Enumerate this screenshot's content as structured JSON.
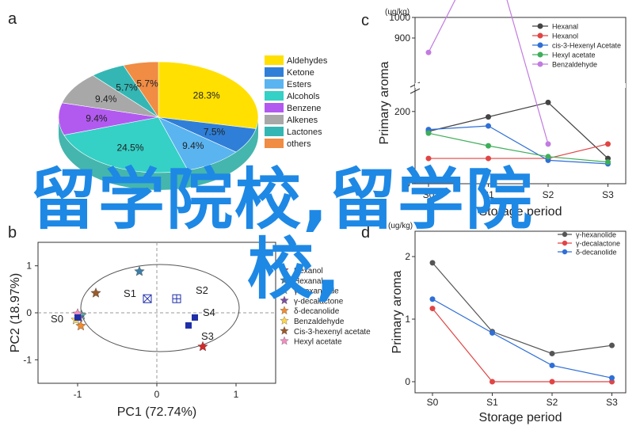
{
  "overlay": {
    "line1": "留学院校,留学院",
    "line2": "校,"
  },
  "colors": {
    "overlay": "#1e88e5"
  },
  "chart_data": [
    {
      "panel": "a",
      "type": "pie",
      "categories": [
        "Aldehydes",
        "Ketone",
        "Esters",
        "Alcohols",
        "Benzene",
        "Alkenes",
        "Lactones",
        "others"
      ],
      "values": [
        28.3,
        7.5,
        9.4,
        24.5,
        9.4,
        9.4,
        5.7,
        5.7
      ],
      "labels": [
        "28.3%",
        "7.5%",
        "9.4%",
        "24.5%",
        "9.4%",
        "9.4%",
        "5.7%",
        "5.7%"
      ],
      "colors": [
        "#ffe000",
        "#2f7fd8",
        "#5ab4f0",
        "#35d0c6",
        "#b25af0",
        "#a8a8a8",
        "#34b7b4",
        "#f08c44"
      ],
      "legend": "right"
    },
    {
      "panel": "b",
      "type": "scatter",
      "xlabel": "PC1 (72.74%)",
      "ylabel": "PC2 (18.97%)",
      "xticks": [
        -1,
        0,
        1
      ],
      "yticks": [
        1,
        0,
        -1
      ],
      "xlim": [
        -1.5,
        1.5
      ],
      "ylim": [
        -1.5,
        1.5
      ],
      "samples": [
        {
          "label": "S0",
          "x": -1.0,
          "y": -0.1,
          "marker": "square"
        },
        {
          "label": "S1",
          "x": -0.12,
          "y": 0.3,
          "marker": "cross-square"
        },
        {
          "label": "S2",
          "x": 0.25,
          "y": 0.3,
          "marker": "grid-square"
        },
        {
          "label": "S3",
          "x": 0.4,
          "y": -0.1,
          "marker": "square"
        },
        {
          "label": "S4",
          "x": 0.4,
          "y": -0.1,
          "marker": "square"
        }
      ],
      "series": [
        {
          "name": "Hexanol",
          "color": "#d62728",
          "x": 0.58,
          "y": -0.72
        },
        {
          "name": "Hexanal",
          "color": "#3c7ea8",
          "x": -0.22,
          "y": 0.88
        },
        {
          "name": "γ-hexanolide",
          "color": "#5aa8a8",
          "x": -0.95,
          "y": -0.05
        },
        {
          "name": "γ-decalactone",
          "color": "#7b4e9e",
          "x": -0.98,
          "y": -0.1
        },
        {
          "name": "δ-decanolide",
          "color": "#f08c30",
          "x": -0.96,
          "y": -0.28
        },
        {
          "name": "Benzaldehyde",
          "color": "#ffd54a",
          "x": -1.02,
          "y": -0.15
        },
        {
          "name": "Cis-3-hexenyl acetate",
          "color": "#9a5a2a",
          "x": -0.77,
          "y": 0.42
        },
        {
          "name": "Hexyl acetate",
          "color": "#f28cc0",
          "x": -1.0,
          "y": -0.02
        }
      ],
      "legend": "right"
    },
    {
      "panel": "c",
      "type": "line",
      "categories": [
        "S0",
        "S1",
        "S2",
        "S3"
      ],
      "xlabel": "Storage period",
      "ylabel": "Primary aroma",
      "unit": "(ug/kg)",
      "yticks": [
        "1000",
        "900",
        "200",
        "0"
      ],
      "series": [
        {
          "name": "Hexanal",
          "color": "#444444",
          "values": [
            145,
            185,
            225,
            70
          ]
        },
        {
          "name": "Hexanol",
          "color": "#e04545",
          "values": [
            70,
            70,
            70,
            110
          ]
        },
        {
          "name": "cis-3-Hexenyl Acetate",
          "color": "#2f6fd6",
          "values": [
            150,
            160,
            65,
            55
          ]
        },
        {
          "name": "Hexyl acetate",
          "color": "#3fae5a",
          "values": [
            140,
            105,
            75,
            60
          ]
        },
        {
          "name": "Benzaldehyde",
          "color": "#c27be0",
          "values": [
            830,
            690,
            110,
            null
          ]
        }
      ],
      "legend": "top-right"
    },
    {
      "panel": "d",
      "type": "line",
      "categories": [
        "S0",
        "S1",
        "S2",
        "S3"
      ],
      "xlabel": "Storage period",
      "ylabel": "Primary aroma",
      "unit": "(ug/kg)",
      "yticks": [
        0,
        1,
        2
      ],
      "ylim": [
        0,
        2.5
      ],
      "series": [
        {
          "name": "γ-hexanolide",
          "color": "#555555",
          "values": [
            1.9,
            0.8,
            0.45,
            0.58
          ]
        },
        {
          "name": "γ-decalactone",
          "color": "#e04545",
          "values": [
            1.17,
            0,
            0,
            0
          ]
        },
        {
          "name": "δ-decanolide",
          "color": "#2f6fd6",
          "values": [
            1.32,
            0.78,
            0.26,
            0.06
          ]
        }
      ],
      "legend": "top-left"
    }
  ]
}
